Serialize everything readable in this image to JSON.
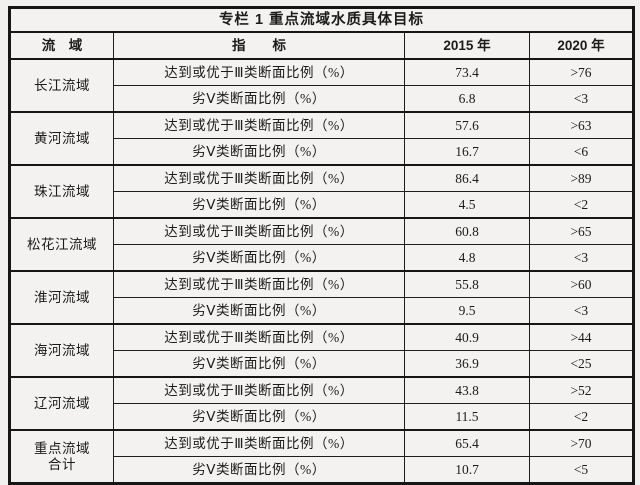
{
  "table": {
    "title": "专栏 1  重点流域水质具体目标",
    "headers": {
      "basin": "流　域",
      "indicator": "指　　标",
      "y2015": "2015 年",
      "y2020": "2020 年"
    },
    "groups": [
      {
        "basin": "长江流域",
        "rows": [
          {
            "indicator": "达到或优于Ⅲ类断面比例（%）",
            "v2015": "73.4",
            "v2020": ">76"
          },
          {
            "indicator": "劣Ⅴ类断面比例（%）",
            "v2015": "6.8",
            "v2020": "<3"
          }
        ]
      },
      {
        "basin": "黄河流域",
        "rows": [
          {
            "indicator": "达到或优于Ⅲ类断面比例（%）",
            "v2015": "57.6",
            "v2020": ">63"
          },
          {
            "indicator": "劣Ⅴ类断面比例（%）",
            "v2015": "16.7",
            "v2020": "<6"
          }
        ]
      },
      {
        "basin": "珠江流域",
        "rows": [
          {
            "indicator": "达到或优于Ⅲ类断面比例（%）",
            "v2015": "86.4",
            "v2020": ">89"
          },
          {
            "indicator": "劣Ⅴ类断面比例（%）",
            "v2015": "4.5",
            "v2020": "<2"
          }
        ]
      },
      {
        "basin": "松花江流域",
        "rows": [
          {
            "indicator": "达到或优于Ⅲ类断面比例（%）",
            "v2015": "60.8",
            "v2020": ">65"
          },
          {
            "indicator": "劣Ⅴ类断面比例（%）",
            "v2015": "4.8",
            "v2020": "<3"
          }
        ]
      },
      {
        "basin": "淮河流域",
        "rows": [
          {
            "indicator": "达到或优于Ⅲ类断面比例（%）",
            "v2015": "55.8",
            "v2020": ">60"
          },
          {
            "indicator": "劣Ⅴ类断面比例（%）",
            "v2015": "9.5",
            "v2020": "<3"
          }
        ]
      },
      {
        "basin": "海河流域",
        "rows": [
          {
            "indicator": "达到或优于Ⅲ类断面比例（%）",
            "v2015": "40.9",
            "v2020": ">44"
          },
          {
            "indicator": "劣Ⅴ类断面比例（%）",
            "v2015": "36.9",
            "v2020": "<25"
          }
        ]
      },
      {
        "basin": "辽河流域",
        "rows": [
          {
            "indicator": "达到或优于Ⅲ类断面比例（%）",
            "v2015": "43.8",
            "v2020": ">52"
          },
          {
            "indicator": "劣Ⅴ类断面比例（%）",
            "v2015": "11.5",
            "v2020": "<2"
          }
        ]
      },
      {
        "basin": "重点流域\n合计",
        "rows": [
          {
            "indicator": "达到或优于Ⅲ类断面比例（%）",
            "v2015": "65.4",
            "v2020": ">70"
          },
          {
            "indicator": "劣Ⅴ类断面比例（%）",
            "v2015": "10.7",
            "v2020": "<5"
          }
        ]
      }
    ]
  }
}
